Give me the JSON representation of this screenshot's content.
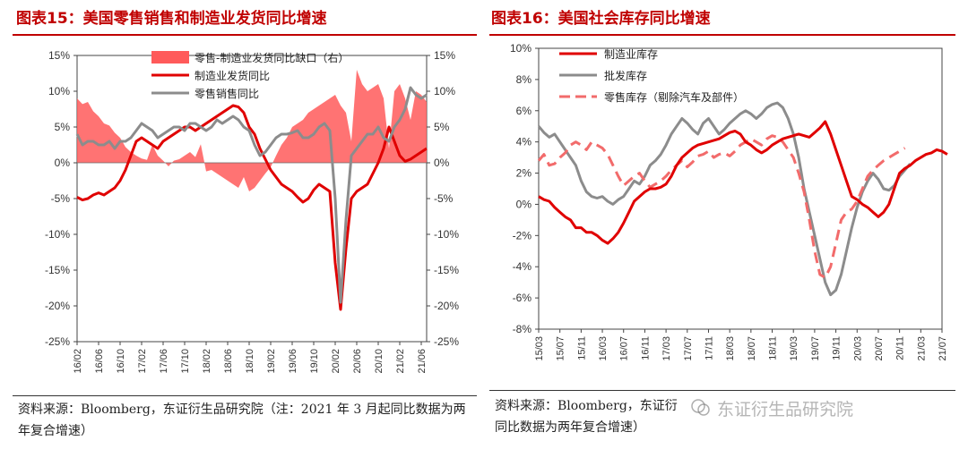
{
  "titles": {
    "left": "图表15：美国零售销售和制造业发货同比增速",
    "right": "图表16：美国社会库存同比增速"
  },
  "notes": {
    "left": "资料来源：Bloomberg，东证衍生品研究院（注：2021 年 3 月起同比数据为两年复合增速）",
    "right": "资料来源：Bloomberg，东证衍\n同比数据为两年复合增速）"
  },
  "watermark": "东证衍生品研究院",
  "colors": {
    "red": "#e00000",
    "gray": "#8c8c8c",
    "area": "#ff5a5a",
    "dash": "#f26b6b",
    "title": "#c00000"
  },
  "chart_data": [
    {
      "type": "line",
      "title": "图表15：美国零售销售和制造业发货同比增速",
      "ylim": [
        -25,
        15
      ],
      "y_ticks": [
        "15%",
        "10%",
        "5%",
        "0%",
        "-5%",
        "-10%",
        "-15%",
        "-20%",
        "-25%"
      ],
      "x_tick_labels": [
        "16/02",
        "16/06",
        "16/10",
        "17/02",
        "17/06",
        "17/10",
        "18/02",
        "18/06",
        "18/10",
        "19/02",
        "19/06",
        "19/10",
        "20/02",
        "20/06",
        "20/10",
        "21/02",
        "21/06"
      ],
      "x_start": "2016-02",
      "x_end": "2021-07",
      "series": [
        {
          "name": "零售-制造业发货同比缺口（右）",
          "kind": "area",
          "axis": "right",
          "values": [
            9,
            8.2,
            8.5,
            7.2,
            6.5,
            5.5,
            5.2,
            4.2,
            3.5,
            2.2,
            1.5,
            1,
            0.6,
            0.4,
            2.5,
            1,
            0.3,
            -0.5,
            0.3,
            0.5,
            1,
            1.5,
            0.8,
            2.6,
            -1.2,
            -1,
            -1.5,
            -2,
            -2.5,
            -3,
            -3.5,
            -2,
            -4,
            -3.5,
            -2.5,
            -1.5,
            -0.6,
            1,
            2.5,
            3.5,
            5,
            5.5,
            6,
            7,
            7.5,
            8,
            8.5,
            9,
            9.5,
            8,
            7,
            3,
            13,
            11,
            10,
            10.5,
            11,
            9,
            2,
            10,
            11,
            9,
            6,
            10,
            9.5,
            8.5
          ]
        },
        {
          "name": "制造业发货同比",
          "kind": "line",
          "axis": "left",
          "values": [
            -4.8,
            -5.2,
            -5,
            -4.5,
            -4.2,
            -4.5,
            -4,
            -3.5,
            -2.5,
            -1,
            1,
            3,
            3.5,
            3,
            2.5,
            2,
            3,
            3.5,
            4,
            4.5,
            5,
            5,
            4.5,
            5,
            5.5,
            6,
            6.5,
            7,
            7.5,
            8,
            7.8,
            7,
            5,
            4,
            2,
            0.5,
            -1,
            -2,
            -3,
            -3.5,
            -4,
            -4.8,
            -5.5,
            -5,
            -3.8,
            -3,
            -3.5,
            -4,
            -14,
            -20.5,
            -12,
            -5,
            -4,
            -3.5,
            -3,
            -1.5,
            0,
            2,
            5,
            3,
            1,
            0.2,
            0.5,
            1,
            1.5,
            2
          ]
        },
        {
          "name": "零售销售同比",
          "kind": "line",
          "axis": "left",
          "values": [
            4,
            2.5,
            3,
            3,
            2.5,
            2.5,
            3,
            2,
            3,
            3,
            3.5,
            4.5,
            5.5,
            5,
            4.5,
            3.5,
            4,
            4.5,
            5,
            5,
            4.5,
            5.5,
            5.5,
            5,
            4.5,
            5,
            6,
            5.5,
            6,
            6.5,
            6,
            5,
            4.5,
            2.5,
            1,
            1.5,
            2.5,
            3.5,
            4,
            4,
            4.2,
            4.5,
            3.5,
            3.5,
            4,
            5,
            5.5,
            4.5,
            -5,
            -19.5,
            -8,
            1,
            2,
            3,
            4,
            4,
            5,
            3.5,
            3,
            5,
            6,
            7.5,
            10.5,
            9.5,
            9,
            9.5
          ]
        }
      ]
    },
    {
      "type": "line",
      "title": "图表16：美国社会库存同比增速",
      "ylim": [
        -8,
        10
      ],
      "y_ticks": [
        "10%",
        "8%",
        "6%",
        "4%",
        "2%",
        "0%",
        "-2%",
        "-4%",
        "-6%",
        "-8%"
      ],
      "x_tick_labels": [
        "15/03",
        "15/07",
        "15/11",
        "16/03",
        "16/07",
        "16/11",
        "17/03",
        "17/07",
        "17/11",
        "18/03",
        "18/07",
        "18/11",
        "19/03",
        "19/07",
        "19/11",
        "20/03",
        "20/07",
        "20/11",
        "21/03",
        "21/07"
      ],
      "x_start": "2015-03",
      "x_end": "2021-07",
      "series": [
        {
          "name": "制造业库存",
          "kind": "line",
          "style": "solid",
          "values": [
            0.5,
            0.3,
            0.2,
            -0.2,
            -0.5,
            -0.8,
            -1,
            -1.5,
            -1.5,
            -1.8,
            -1.8,
            -2,
            -2.3,
            -2.5,
            -2.2,
            -1.8,
            -1.2,
            -0.5,
            0.2,
            0.5,
            0.8,
            1,
            1,
            1.1,
            1.3,
            1.8,
            2.5,
            3,
            3.3,
            3.6,
            3.8,
            3.9,
            4,
            4.1,
            4.2,
            4.4,
            4.6,
            4.7,
            4.5,
            4,
            3.8,
            3.5,
            3.3,
            3.5,
            3.8,
            4,
            4.2,
            4.3,
            4.4,
            4.5,
            4.4,
            4.3,
            4.6,
            4.9,
            5.3,
            4.5,
            3.5,
            2.5,
            1.5,
            0.5,
            0.3,
            0,
            -0.2,
            -0.5,
            -0.8,
            -0.5,
            0,
            1,
            2,
            2.3,
            2.5,
            2.8,
            3,
            3.2,
            3.3,
            3.5,
            3.4,
            3.2
          ]
        },
        {
          "name": "批发库存",
          "kind": "line",
          "style": "solid",
          "values": [
            5,
            4.6,
            4.3,
            4.5,
            4,
            3.5,
            3,
            2.5,
            1.5,
            0.8,
            0.5,
            0.4,
            0.5,
            0.2,
            0,
            0.3,
            0.5,
            1,
            1.5,
            1.3,
            1.8,
            2.5,
            2.8,
            3.2,
            3.8,
            4.5,
            5,
            5.5,
            5.2,
            4.8,
            4.5,
            5.2,
            5.5,
            5,
            4.5,
            4.8,
            5.2,
            5.5,
            5.8,
            6,
            5.8,
            5.5,
            5.8,
            6.2,
            6.4,
            6.5,
            6.2,
            5.5,
            4.5,
            3,
            1,
            -0.5,
            -2,
            -3.5,
            -5,
            -5.8,
            -5.5,
            -4.5,
            -3,
            -1.5,
            -0.2,
            0.8,
            1.5,
            2,
            1.6,
            1,
            0.9,
            1.2,
            1.8,
            2.2,
            2.6
          ]
        },
        {
          "name": "零售库存（剔除汽车及部件）",
          "kind": "line",
          "style": "dashed",
          "values": [
            2.8,
            3.2,
            2.5,
            2.6,
            3,
            3.3,
            3.8,
            4,
            3.8,
            3.5,
            4,
            3.8,
            3.6,
            3.2,
            2.5,
            1.8,
            1.2,
            1.5,
            1.8,
            2,
            1.5,
            1.1,
            1.3,
            1.5,
            1.8,
            2.2,
            2.5,
            2.8,
            2.4,
            2.7,
            3.1,
            3.2,
            3.4,
            3,
            3.2,
            3.3,
            3.1,
            3.4,
            3.8,
            4,
            4.2,
            4,
            3.8,
            4.2,
            4.4,
            4.3,
            4,
            3.5,
            3,
            2,
            0.8,
            -1,
            -3,
            -4.5,
            -4.7,
            -4,
            -2.5,
            -1,
            -0.5,
            -0.3,
            0.2,
            1,
            1.8,
            2.2,
            2.5,
            2.8,
            3,
            3.2,
            3.4,
            3.6
          ]
        }
      ]
    }
  ]
}
